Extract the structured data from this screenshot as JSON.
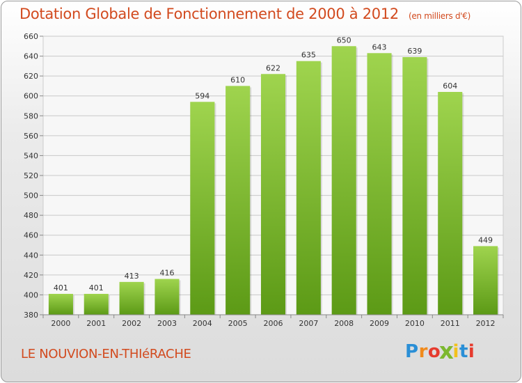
{
  "title": "Dotation Globale de Fonctionnement de 2000 à 2012",
  "unit": "(en milliers d'€)",
  "commune": "LE NOUVION-EN-THIéRACHE",
  "logo": {
    "letters": [
      "P",
      "r",
      "o",
      "x",
      "i",
      "t",
      "i"
    ],
    "colors": [
      "#2a8fd6",
      "#f08a1c",
      "#e63b2e",
      "#7cb82f",
      "#f2c11d",
      "#2a8fd6",
      "#e63b2e"
    ]
  },
  "chart_data": {
    "type": "bar",
    "categories": [
      "2000",
      "2001",
      "2002",
      "2003",
      "2004",
      "2005",
      "2006",
      "2007",
      "2008",
      "2009",
      "2010",
      "2011",
      "2012"
    ],
    "values": [
      401,
      401,
      413,
      416,
      594,
      610,
      622,
      635,
      650,
      643,
      639,
      604,
      449
    ],
    "ylim": [
      380,
      660
    ],
    "yticks": [
      380,
      400,
      420,
      440,
      460,
      480,
      500,
      520,
      540,
      560,
      580,
      600,
      620,
      640,
      660
    ],
    "grid": true,
    "bar_color_top": "#9fd44e",
    "bar_color_bottom": "#5c9a16"
  }
}
